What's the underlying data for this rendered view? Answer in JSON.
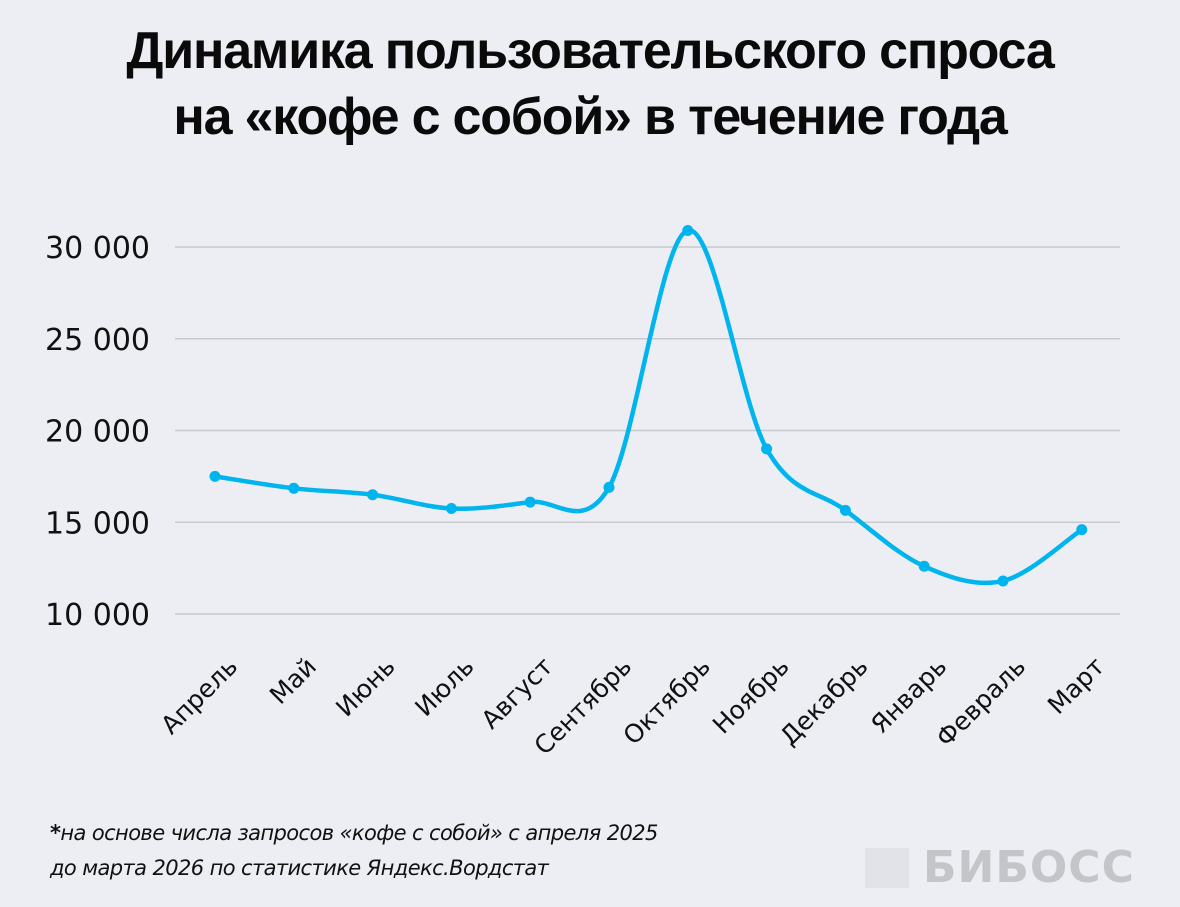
{
  "chart_data": {
    "type": "line",
    "title": [
      "Динамика пользовательского спроса",
      "на «кофе с собой» в течение года"
    ],
    "categories": [
      "Апрель",
      "Май",
      "Июнь",
      "Июль",
      "Август",
      "Сентябрь",
      "Октябрь",
      "Ноябрь",
      "Декабрь",
      "Январь",
      "Февраль",
      "Март"
    ],
    "values": [
      17500,
      16850,
      16500,
      15750,
      16100,
      16900,
      30900,
      19000,
      15650,
      12600,
      11800,
      14600
    ],
    "yticks": [
      10000,
      15000,
      20000,
      25000,
      30000
    ],
    "ytick_labels": [
      "10 000",
      "15 000",
      "20 000",
      "25 000",
      "30 000"
    ],
    "ylim": [
      10000,
      30000
    ],
    "grid": "horizontal",
    "smooth": true,
    "line_color": "#00b4ee",
    "grid_color": "#c8c9cd"
  },
  "footnote": {
    "star": "*",
    "line1": "на основе числа запросов «кофе с собой» с апреля 2025",
    "line2": "до марта 2026 по статистике Яндекс.Вордстат"
  },
  "logo": {
    "text": "БИБОСС"
  },
  "colors": {
    "background": "#edeef3"
  }
}
